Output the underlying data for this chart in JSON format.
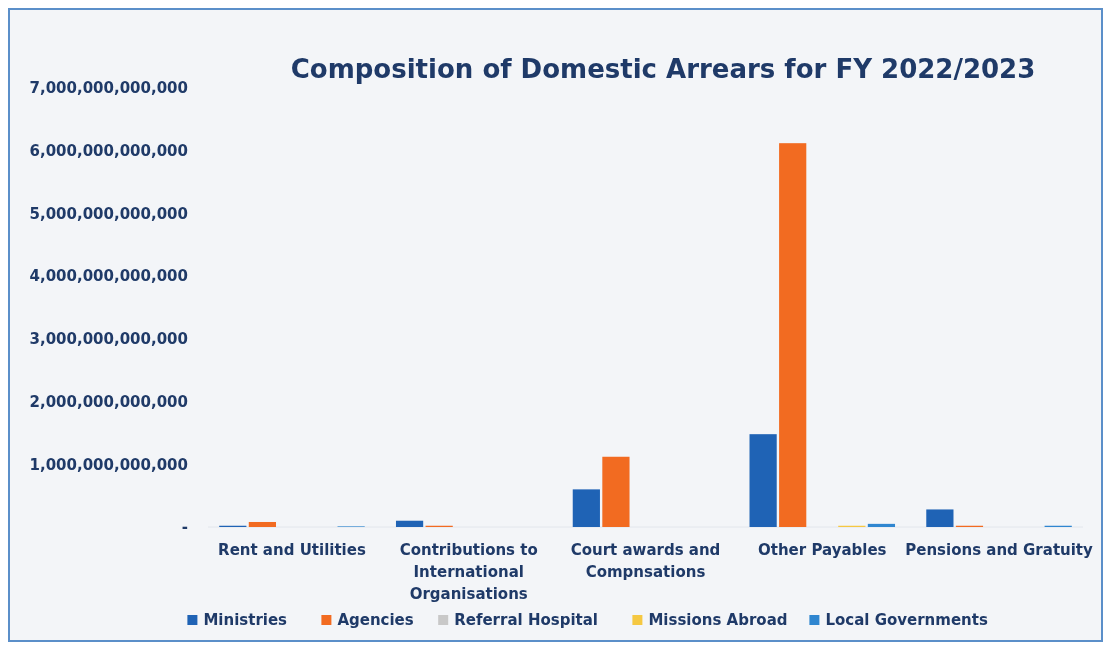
{
  "chart_data": {
    "type": "bar",
    "title": "Composition of Domestic Arrears for FY 2022/2023",
    "categories": [
      "Rent and Utilities",
      "Contributions to International Organisations",
      "Court awards and Compnsations",
      "Other Payables",
      "Pensions and Gratuity"
    ],
    "series": [
      {
        "name": "Ministries",
        "color": "#1f63b5",
        "values": [
          20000000000,
          100000000000,
          600000000000,
          1480000000000,
          280000000000
        ]
      },
      {
        "name": "Agencies",
        "color": "#f26b21",
        "values": [
          80000000000,
          20000000000,
          1120000000000,
          6120000000000,
          20000000000
        ]
      },
      {
        "name": "Referral Hospital",
        "color": "#c8c8c8",
        "values": [
          null,
          0,
          0,
          null,
          null
        ]
      },
      {
        "name": "Missions Abroad",
        "color": "#f5c842",
        "values": [
          0,
          0,
          0,
          20000000000,
          0
        ]
      },
      {
        "name": "Local Governments",
        "color": "#2f86d0",
        "values": [
          10000000000,
          0,
          0,
          50000000000,
          20000000000
        ]
      }
    ],
    "ylim": [
      0,
      7000000000000
    ],
    "yticks": [
      {
        "value": 0,
        "label": "-"
      },
      {
        "value": 1000000000000,
        "label": "1,000,000,000,000"
      },
      {
        "value": 2000000000000,
        "label": "2,000,000,000,000"
      },
      {
        "value": 3000000000000,
        "label": "3,000,000,000,000"
      },
      {
        "value": 4000000000000,
        "label": "4,000,000,000,000"
      },
      {
        "value": 5000000000000,
        "label": "5,000,000,000,000"
      },
      {
        "value": 6000000000000,
        "label": "6,000,000,000,000"
      },
      {
        "value": 7000000000000,
        "label": "7,000,000,000,000"
      }
    ],
    "legend": "bottom"
  }
}
